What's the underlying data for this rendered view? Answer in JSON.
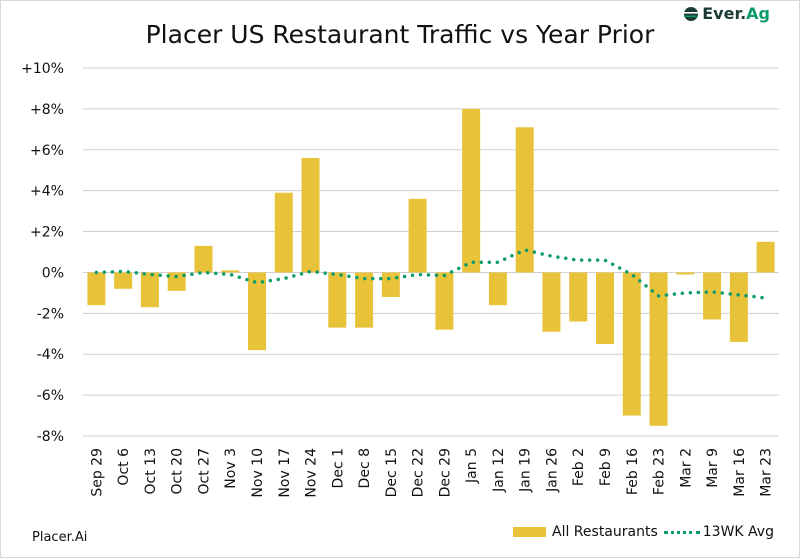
{
  "logo": {
    "text_a": "Ever.",
    "text_b": "Ag"
  },
  "source": "Placer.Ai",
  "colors": {
    "bar": "#E8C33A",
    "line": "#0E9B6C",
    "grid": "#d0d0d0"
  },
  "chart_data": {
    "type": "bar",
    "title": "Placer US Restaurant Traffic vs Year Prior",
    "categories": [
      "Sep 29",
      "Oct 6",
      "Oct 13",
      "Oct 20",
      "Oct 27",
      "Nov 3",
      "Nov 10",
      "Nov 17",
      "Nov 24",
      "Dec 1",
      "Dec 8",
      "Dec 15",
      "Dec 22",
      "Dec 29",
      "Jan 5",
      "Jan 12",
      "Jan 19",
      "Jan 26",
      "Feb 2",
      "Feb 9",
      "Feb 16",
      "Feb 23",
      "Mar 2",
      "Mar 9",
      "Mar 16",
      "Mar 23"
    ],
    "series": [
      {
        "name": "All Restaurants",
        "type": "bar",
        "values": [
          -1.6,
          -0.8,
          -1.7,
          -0.9,
          1.3,
          0.1,
          -3.8,
          3.9,
          5.6,
          -2.7,
          -2.7,
          -1.2,
          3.6,
          -2.8,
          8.0,
          -1.6,
          7.1,
          -2.9,
          -2.4,
          -3.5,
          -7.0,
          -7.5,
          -0.1,
          -2.3,
          -3.4,
          1.5
        ]
      },
      {
        "name": "13WK Avg",
        "type": "line-dotted",
        "values": [
          0.0,
          0.05,
          -0.1,
          -0.2,
          0.0,
          -0.1,
          -0.5,
          -0.3,
          0.05,
          -0.1,
          -0.3,
          -0.3,
          -0.1,
          -0.15,
          0.5,
          0.5,
          1.1,
          0.8,
          0.6,
          0.6,
          -0.1,
          -1.15,
          -1.0,
          -0.95,
          -1.1,
          -1.25
        ]
      }
    ],
    "yticks": [
      "-8%",
      "-6%",
      "-4%",
      "-2%",
      "0%",
      "+2%",
      "+4%",
      "+6%",
      "+8%",
      "+10%"
    ],
    "ylim": [
      -8,
      10
    ],
    "grid": true,
    "legend": "bottom-right",
    "xlabel": "",
    "ylabel": ""
  }
}
